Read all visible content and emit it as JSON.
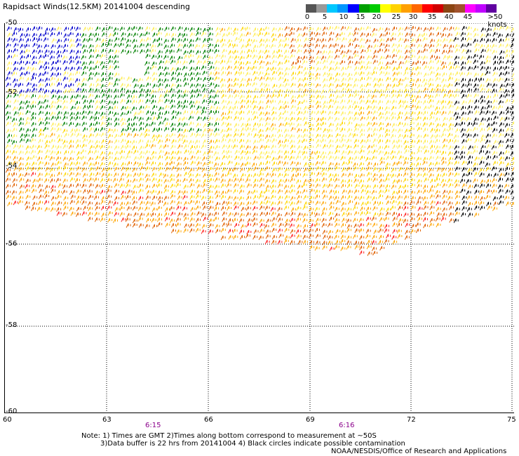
{
  "title": "Rapidsact Winds(12.5KM) 20141004 descending",
  "legend": {
    "unit_label": ">50 knots",
    "tick_labels": [
      "0",
      "5",
      "10",
      "15",
      "20",
      "25",
      "30",
      "35",
      "40",
      "45"
    ],
    "swatch_colors": [
      "#555555",
      "#999999",
      "#00c8ff",
      "#0096ff",
      "#0000ff",
      "#00a000",
      "#00cc00",
      "#ffff00",
      "#ffd200",
      "#ffa000",
      "#ff6600",
      "#ff0000",
      "#d00000",
      "#8b4513",
      "#a0522d",
      "#ff00ff",
      "#c000ff",
      "#6000a0"
    ]
  },
  "map": {
    "lat_labels": [
      "-50",
      "-52",
      "-54",
      "-56",
      "-58",
      "-60"
    ],
    "lon_labels": [
      "60",
      "63",
      "66",
      "69",
      "72",
      "75"
    ],
    "lat_range": [
      -60,
      -50
    ],
    "lon_range": [
      60,
      75
    ],
    "gridlines": "dotted",
    "times": [
      "6:15",
      "6:16"
    ],
    "time_color": "#8b008b",
    "wind_colors": {
      "blue": "#0000cc",
      "green": "#008000",
      "yellow": "#ffd700",
      "light_yellow": "#ffee55",
      "orange": "#ffa500",
      "dark_orange": "#e06000",
      "red": "#ff2020",
      "black": "#000000"
    }
  },
  "notes": {
    "line1": "Note: 1) Times are GMT 2)Times along bottom correspond to measurement at ~50S",
    "line2": "3)Data buffer is 22 hrs from 20141004 4) Black circles indicate possible contamination",
    "credit": "NOAA/NESDIS/Office of Research and Applications"
  }
}
